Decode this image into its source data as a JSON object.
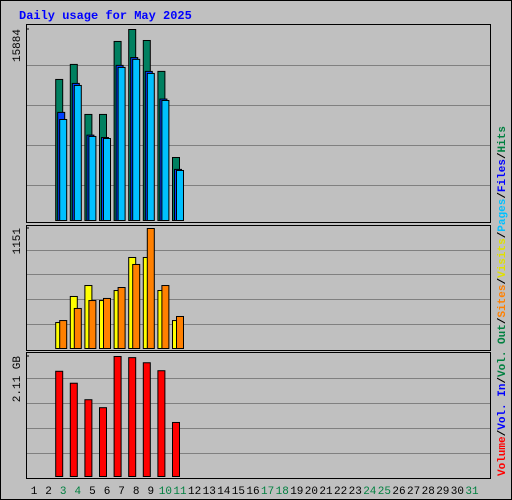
{
  "title": "Daily usage for May 2025",
  "categories": [
    "1",
    "2",
    "3",
    "4",
    "5",
    "6",
    "7",
    "8",
    "9",
    "10",
    "11",
    "12",
    "13",
    "14",
    "15",
    "16",
    "17",
    "18",
    "19",
    "20",
    "21",
    "22",
    "23",
    "24",
    "25",
    "26",
    "27",
    "28",
    "29",
    "30",
    "31"
  ],
  "category_colors": [
    "#000000",
    "#000000",
    "#008040",
    "#008040",
    "#000000",
    "#000000",
    "#000000",
    "#000000",
    "#000000",
    "#008040",
    "#008040",
    "#000000",
    "#000000",
    "#000000",
    "#000000",
    "#000000",
    "#008040",
    "#008040",
    "#000000",
    "#000000",
    "#000000",
    "#000000",
    "#000000",
    "#008040",
    "#008040",
    "#000000",
    "#000000",
    "#000000",
    "#000000",
    "#000000",
    "#008040"
  ],
  "legend_separator": "/",
  "legend": [
    {
      "name": "Volume",
      "color": "#ff0000"
    },
    {
      "name": "Vol. In",
      "color": "#0000ff"
    },
    {
      "name": "Vol. Out",
      "color": "#008040"
    },
    {
      "name": "Sites",
      "color": "#ff8000"
    },
    {
      "name": "Visits",
      "color": "#e0e000"
    },
    {
      "name": "Pages",
      "color": "#00c0ff"
    },
    {
      "name": "Files",
      "color": "#0000ff"
    },
    {
      "name": "Hits",
      "color": "#008040"
    }
  ],
  "chart_data": [
    {
      "type": "bar",
      "ylim": [
        0,
        15884
      ],
      "yticks": [
        15884
      ],
      "series": [
        {
          "color": "#008060",
          "values": [
            null,
            null,
            11730,
            12980,
            8820,
            8820,
            14890,
            15884,
            14970,
            12400,
            5240,
            null,
            null,
            null,
            null,
            null,
            null,
            null,
            null,
            null,
            null,
            null,
            null,
            null,
            null,
            null,
            null,
            null,
            null,
            null,
            null
          ]
        },
        {
          "color": "#0040ff",
          "values": [
            null,
            null,
            8990,
            11400,
            7100,
            6900,
            12900,
            13550,
            12400,
            10100,
            4250,
            null,
            null,
            null,
            null,
            null,
            null,
            null,
            null,
            null,
            null,
            null,
            null,
            null,
            null,
            null,
            null,
            null,
            null,
            null,
            null
          ]
        },
        {
          "color": "#00c0ff",
          "values": [
            null,
            null,
            8400,
            11230,
            6990,
            6820,
            12730,
            13400,
            12230,
            9980,
            4160,
            null,
            null,
            null,
            null,
            null,
            null,
            null,
            null,
            null,
            null,
            null,
            null,
            null,
            null,
            null,
            null,
            null,
            null,
            null,
            null
          ]
        }
      ]
    },
    {
      "type": "bar",
      "ylim": [
        0,
        1151
      ],
      "yticks": [
        1151
      ],
      "series": [
        {
          "color": "#ffff00",
          "values": [
            null,
            null,
            249,
            499,
            604,
            460,
            556,
            873,
            873,
            556,
            268,
            null,
            null,
            null,
            null,
            null,
            null,
            null,
            null,
            null,
            null,
            null,
            null,
            null,
            null,
            null,
            null,
            null,
            null,
            null,
            null
          ]
        },
        {
          "color": "#ff8000",
          "values": [
            null,
            null,
            268,
            384,
            460,
            480,
            585,
            806,
            1151,
            604,
            307,
            null,
            null,
            null,
            null,
            null,
            null,
            null,
            null,
            null,
            null,
            null,
            null,
            null,
            null,
            null,
            null,
            null,
            null,
            null,
            null
          ]
        }
      ]
    },
    {
      "type": "bar",
      "ylim": [
        0,
        2.11
      ],
      "yticks": [
        {
          "value": 2.11,
          "label": "2.11 GB"
        }
      ],
      "series": [
        {
          "color": "#ff0000",
          "values": [
            null,
            null,
            1.85,
            1.64,
            1.35,
            1.21,
            2.11,
            2.09,
            2.0,
            1.86,
            0.95,
            null,
            null,
            null,
            null,
            null,
            null,
            null,
            null,
            null,
            null,
            null,
            null,
            null,
            null,
            null,
            null,
            null,
            null,
            null,
            null
          ]
        }
      ]
    }
  ]
}
